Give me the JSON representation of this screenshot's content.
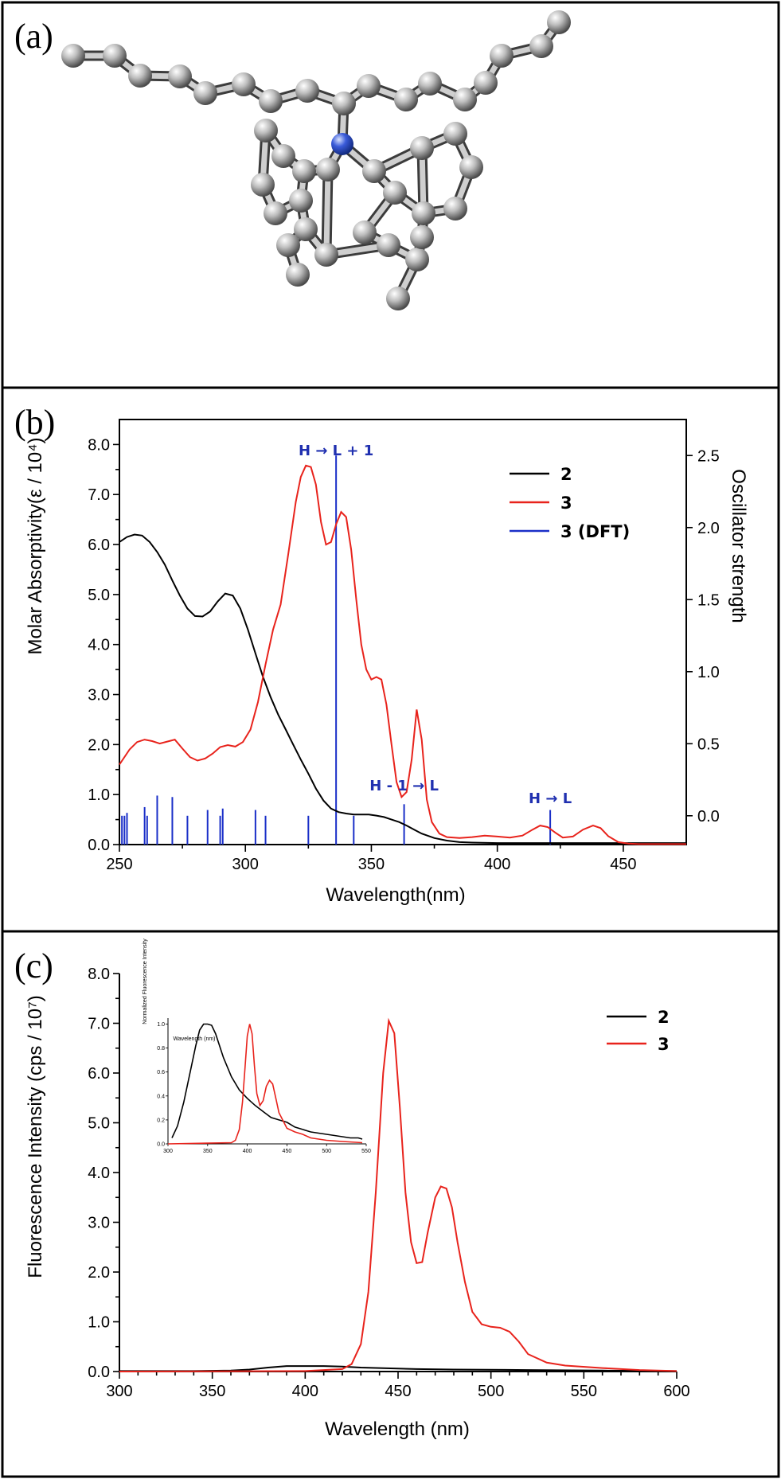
{
  "panel_labels": {
    "a": "(a)",
    "b": "(b)",
    "c": "(c)"
  },
  "colors": {
    "s2": "#000000",
    "s3": "#e8231c",
    "dft": "#1a2fc8",
    "atom_c": "#bdbdbd",
    "atom_n": "#3a5bd9"
  },
  "molecule": {
    "image": "ball-and-stick model of compound"
  },
  "chart_data": [
    {
      "type": "line",
      "panel": "b",
      "xlabel": "Wavelength(nm)",
      "ylabel": "Molar Absorptivity(ε / 10⁴)",
      "y2label": "Oscillator strength",
      "xlim": [
        250,
        475
      ],
      "ylim": [
        0,
        8.5
      ],
      "y2lim": [
        -0.2,
        2.75
      ],
      "xticks": [
        "250",
        "300",
        "350",
        "400",
        "450"
      ],
      "yticks": [
        "0.0",
        "1.0",
        "2.0",
        "3.0",
        "4.0",
        "5.0",
        "6.0",
        "7.0",
        "8.0"
      ],
      "y2ticks": [
        "0.0",
        "0.5",
        "1.0",
        "1.5",
        "2.0",
        "2.5"
      ],
      "legend": [
        {
          "label": "2",
          "color": "#000000"
        },
        {
          "label": "3",
          "color": "#e8231c"
        },
        {
          "label": "3 (DFT)",
          "color": "#1a2fc8"
        }
      ],
      "annotations": [
        {
          "text": "H → L + 1",
          "x": 336
        },
        {
          "text": "H - 1 → L",
          "x": 363
        },
        {
          "text": "H → L",
          "x": 421
        }
      ],
      "series": [
        {
          "name": "2",
          "x": [
            250,
            253,
            256,
            259,
            262,
            265,
            268,
            271,
            274,
            277,
            280,
            283,
            286,
            289,
            292,
            295,
            298,
            301,
            304,
            307,
            310,
            313,
            316,
            319,
            322,
            325,
            328,
            331,
            334,
            337,
            340,
            343,
            346,
            349,
            352,
            355,
            358,
            361,
            364,
            367,
            370,
            375,
            380,
            385,
            390,
            400,
            420,
            440,
            460,
            475
          ],
          "y": [
            6.05,
            6.15,
            6.2,
            6.18,
            6.05,
            5.85,
            5.6,
            5.28,
            4.98,
            4.72,
            4.57,
            4.56,
            4.66,
            4.86,
            5.02,
            4.98,
            4.72,
            4.3,
            3.82,
            3.35,
            2.95,
            2.6,
            2.3,
            2.0,
            1.7,
            1.42,
            1.12,
            0.88,
            0.72,
            0.65,
            0.62,
            0.6,
            0.6,
            0.6,
            0.58,
            0.55,
            0.5,
            0.45,
            0.38,
            0.3,
            0.22,
            0.13,
            0.08,
            0.05,
            0.04,
            0.03,
            0.03,
            0.03,
            0.03,
            0.03
          ]
        },
        {
          "name": "3",
          "x": [
            250,
            254,
            257,
            260,
            263,
            266,
            269,
            272,
            275,
            278,
            281,
            284,
            287,
            290,
            293,
            296,
            299,
            302,
            305,
            308,
            311,
            314,
            317,
            320,
            322,
            324,
            326,
            328,
            330,
            332,
            334,
            336,
            338,
            340,
            342,
            344,
            346,
            348,
            350,
            352,
            354,
            356,
            358,
            360,
            362,
            364,
            366,
            368,
            370,
            372,
            374,
            377,
            380,
            385,
            390,
            395,
            400,
            405,
            410,
            414,
            417,
            420,
            423,
            426,
            430,
            434,
            438,
            441,
            444,
            448,
            452,
            456,
            460,
            470,
            475
          ],
          "y": [
            1.6,
            1.9,
            2.05,
            2.1,
            2.07,
            2.02,
            2.06,
            2.1,
            1.92,
            1.75,
            1.68,
            1.72,
            1.82,
            1.95,
            1.99,
            1.96,
            2.05,
            2.3,
            2.85,
            3.6,
            4.3,
            4.8,
            5.8,
            6.85,
            7.35,
            7.58,
            7.55,
            7.2,
            6.45,
            6.0,
            6.05,
            6.4,
            6.65,
            6.55,
            5.9,
            4.9,
            4.0,
            3.5,
            3.3,
            3.35,
            3.3,
            2.8,
            2.0,
            1.25,
            0.95,
            1.05,
            1.7,
            2.7,
            2.1,
            0.9,
            0.45,
            0.22,
            0.15,
            0.13,
            0.15,
            0.18,
            0.16,
            0.14,
            0.18,
            0.3,
            0.38,
            0.35,
            0.24,
            0.14,
            0.16,
            0.3,
            0.38,
            0.33,
            0.17,
            0.05,
            0.02,
            0.01,
            0.01,
            0.01,
            0.01
          ]
        },
        {
          "name": "3 (DFT)",
          "type": "stick",
          "x": [
            251,
            252,
            253,
            260,
            261,
            265,
            271,
            277,
            285,
            290,
            291,
            304,
            308,
            325,
            336,
            343,
            363,
            421
          ],
          "y": [
            0.0,
            0.0,
            0.02,
            0.06,
            0.0,
            0.14,
            0.13,
            0.0,
            0.04,
            0.0,
            0.05,
            0.04,
            0.0,
            0.0,
            2.5,
            0.0,
            0.08,
            0.04
          ]
        }
      ]
    },
    {
      "type": "line",
      "panel": "c",
      "xlabel": "Wavelength (nm)",
      "ylabel": "Fluorescence Intensity (cps / 10⁷)",
      "xlim": [
        300,
        600
      ],
      "ylim": [
        0,
        8.0
      ],
      "xticks": [
        "300",
        "350",
        "400",
        "450",
        "500",
        "550",
        "600"
      ],
      "yticks": [
        "0.0",
        "1.0",
        "2.0",
        "3.0",
        "4.0",
        "5.0",
        "6.0",
        "7.0",
        "8.0"
      ],
      "legend": [
        {
          "label": "2",
          "color": "#000000"
        },
        {
          "label": "3",
          "color": "#e8231c"
        }
      ],
      "series": [
        {
          "name": "2",
          "x": [
            300,
            340,
            360,
            370,
            380,
            390,
            400,
            410,
            420,
            430,
            440,
            460,
            480,
            520,
            560,
            600
          ],
          "y": [
            0.01,
            0.01,
            0.02,
            0.04,
            0.08,
            0.11,
            0.11,
            0.11,
            0.1,
            0.08,
            0.07,
            0.05,
            0.04,
            0.03,
            0.02,
            0.01
          ]
        },
        {
          "name": "3",
          "x": [
            300,
            400,
            420,
            425,
            430,
            434,
            438,
            442,
            445,
            448,
            451,
            454,
            457,
            460,
            463,
            466,
            470,
            473,
            476,
            479,
            482,
            486,
            490,
            495,
            500,
            505,
            510,
            515,
            520,
            530,
            540,
            560,
            580,
            600
          ],
          "y": [
            0.0,
            0.01,
            0.05,
            0.15,
            0.55,
            1.6,
            3.6,
            6.0,
            7.05,
            6.8,
            5.3,
            3.6,
            2.6,
            2.18,
            2.2,
            2.8,
            3.5,
            3.72,
            3.68,
            3.3,
            2.6,
            1.8,
            1.2,
            0.95,
            0.9,
            0.88,
            0.8,
            0.6,
            0.35,
            0.18,
            0.12,
            0.07,
            0.03,
            0.01
          ]
        }
      ]
    },
    {
      "type": "line",
      "panel": "c-inset",
      "xlabel": "Wavelength (nm)",
      "ylabel": "Normalized Fluorescence Intensity",
      "xlim": [
        300,
        550
      ],
      "ylim": [
        0,
        1.05
      ],
      "xticks": [
        "300",
        "350",
        "400",
        "450",
        "500",
        "550"
      ],
      "yticks": [
        "0.0",
        "0.2",
        "0.4",
        "0.6",
        "0.8",
        "1.0"
      ],
      "series": [
        {
          "name": "2",
          "x": [
            305,
            312,
            320,
            328,
            335,
            340,
            345,
            350,
            355,
            360,
            370,
            380,
            390,
            400,
            410,
            420,
            430,
            440,
            450,
            460,
            470,
            480,
            490,
            500,
            510,
            520,
            530,
            540,
            545
          ],
          "y": [
            0.05,
            0.15,
            0.35,
            0.6,
            0.82,
            0.95,
            1.0,
            1.0,
            0.99,
            0.92,
            0.72,
            0.56,
            0.45,
            0.38,
            0.32,
            0.27,
            0.22,
            0.2,
            0.18,
            0.14,
            0.12,
            0.1,
            0.09,
            0.08,
            0.07,
            0.06,
            0.05,
            0.05,
            0.04
          ]
        },
        {
          "name": "3",
          "x": [
            300,
            380,
            385,
            390,
            394,
            397,
            400,
            403,
            406,
            409,
            412,
            416,
            420,
            424,
            428,
            432,
            436,
            440,
            450,
            460,
            470,
            480,
            500,
            520,
            545
          ],
          "y": [
            0.0,
            0.01,
            0.03,
            0.12,
            0.35,
            0.62,
            0.9,
            1.0,
            0.92,
            0.65,
            0.42,
            0.32,
            0.36,
            0.48,
            0.53,
            0.5,
            0.38,
            0.26,
            0.13,
            0.1,
            0.08,
            0.05,
            0.03,
            0.02,
            0.01
          ]
        }
      ]
    }
  ]
}
